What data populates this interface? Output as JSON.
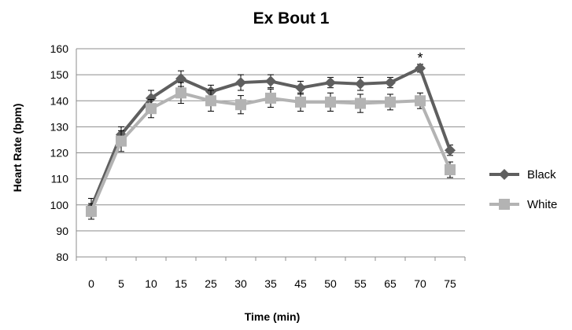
{
  "chart_data": {
    "type": "line",
    "title": "Ex Bout 1",
    "xlabel": "Time (min)",
    "ylabel": "Heart Rate  (bpm)",
    "categories": [
      "0",
      "5",
      "10",
      "15",
      "25",
      "30",
      "35",
      "45",
      "50",
      "55",
      "65",
      "70",
      "75"
    ],
    "ylim": [
      80,
      160
    ],
    "yticks": [
      80,
      90,
      100,
      110,
      120,
      130,
      140,
      150,
      160
    ],
    "grid": true,
    "legend_position": "right",
    "series": [
      {
        "name": "Black",
        "color": "#5f5f5f",
        "marker": "diamond",
        "values": [
          99,
          127,
          141,
          148.5,
          143.5,
          147,
          147.5,
          145,
          147,
          146.5,
          147,
          152.5,
          121
        ],
        "error": [
          3.5,
          3,
          3,
          3,
          2.5,
          3,
          2.5,
          2.5,
          2,
          2.5,
          2,
          1.5,
          2
        ]
      },
      {
        "name": "White",
        "color": "#b3b3b3",
        "marker": "square",
        "values": [
          97.5,
          124.5,
          137,
          143,
          140,
          138.5,
          141,
          139.5,
          139.5,
          139,
          139.5,
          140,
          113.5
        ],
        "error": [
          3,
          4,
          3.5,
          4,
          4,
          3.5,
          3.5,
          3.5,
          3.5,
          3.5,
          3,
          3,
          3
        ]
      }
    ],
    "annotations": [
      {
        "text": "*",
        "category": "70",
        "series": "Black"
      }
    ]
  }
}
